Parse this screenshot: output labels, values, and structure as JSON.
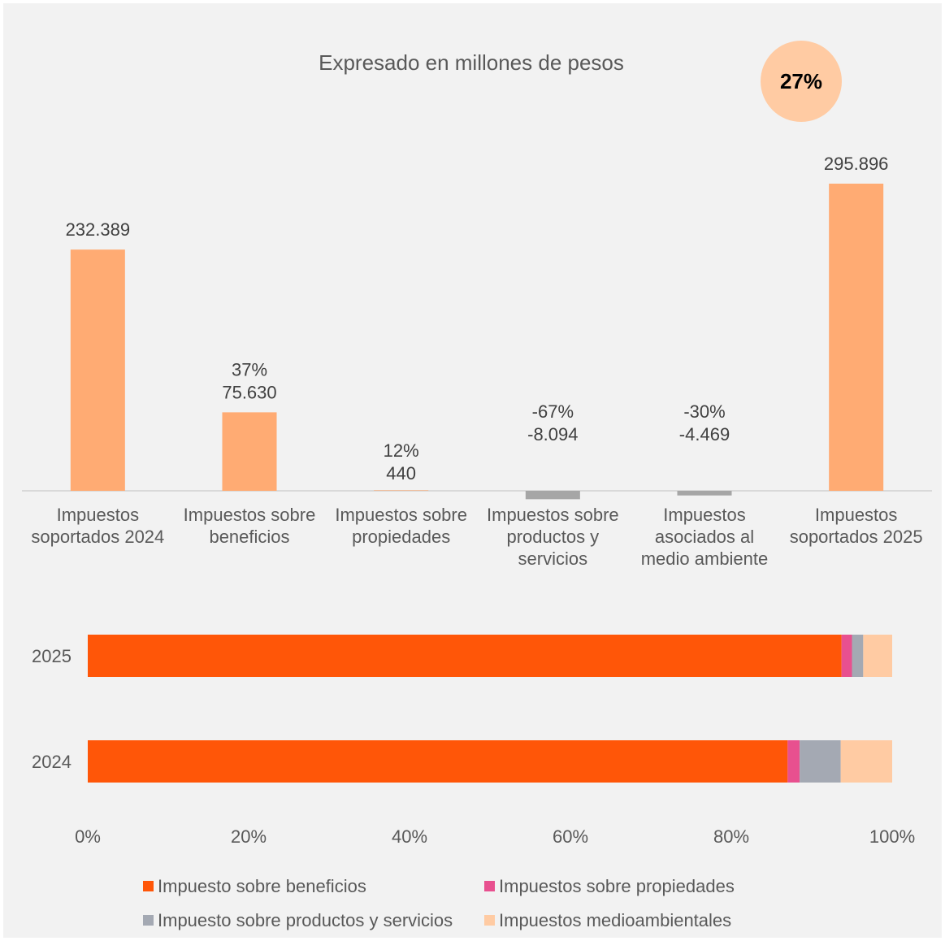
{
  "chart_data": [
    {
      "type": "bar",
      "subtype": "waterfall",
      "title": "Expresado en millones de pesos",
      "badge": "27%",
      "categories": [
        [
          "Impuestos",
          "soportados 2024"
        ],
        [
          "Impuestos sobre",
          "beneficios"
        ],
        [
          "Impuestos sobre",
          "propiedades"
        ],
        [
          "Impuestos sobre",
          "productos y",
          "servicios"
        ],
        [
          "Impuestos",
          "asociados al",
          "medio ambiente"
        ],
        [
          "Impuestos",
          "soportados 2025"
        ]
      ],
      "values": [
        232389,
        75630,
        440,
        -8094,
        -4469,
        295896
      ],
      "value_labels": [
        "232.389",
        "75.630",
        "440",
        "-8.094",
        "-4.469",
        "295.896"
      ],
      "pct_labels": [
        "",
        "37%",
        "12%",
        "-67%",
        "-30%",
        ""
      ],
      "colors": [
        "#ffab73",
        "#ffab73",
        "#ffab73",
        "#a6a6a6",
        "#a6a6a6",
        "#ffab73"
      ],
      "ylim": [
        -20000,
        310000
      ]
    },
    {
      "type": "bar",
      "subtype": "stacked-horizontal-100",
      "categories": [
        "2025",
        "2024"
      ],
      "series": [
        {
          "name": "Impuesto sobre beneficios",
          "color": "#ff5608",
          "values": [
            93.7,
            87.0
          ]
        },
        {
          "name": "Impuestos sobre propiedades",
          "color": "#e8508f",
          "values": [
            1.3,
            1.5
          ]
        },
        {
          "name": "Impuesto sobre productos y servicios",
          "color": "#a4a9b3",
          "values": [
            1.4,
            5.1
          ]
        },
        {
          "name": "Impuestos medioambientales",
          "color": "#ffcba3",
          "values": [
            3.6,
            6.4
          ]
        }
      ],
      "x_ticks": [
        "0%",
        "20%",
        "40%",
        "60%",
        "80%",
        "100%"
      ],
      "xlim": [
        0,
        100
      ],
      "legend": "bottom"
    }
  ]
}
